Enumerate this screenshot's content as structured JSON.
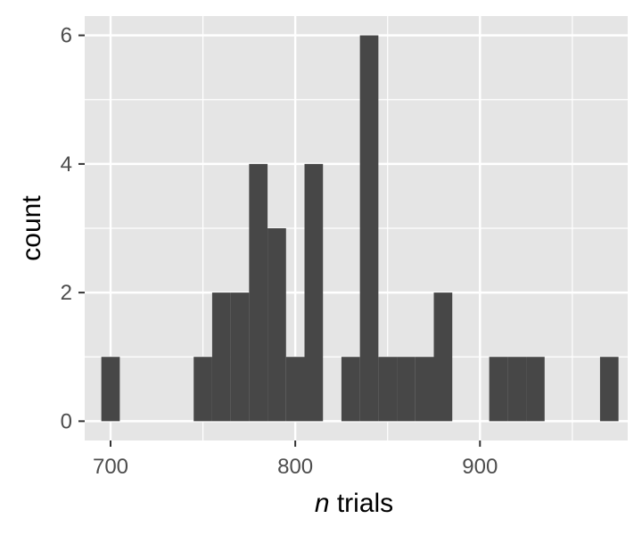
{
  "chart_data": {
    "type": "bar",
    "subtype": "histogram",
    "title": "",
    "xlabel_italic": "n",
    "xlabel_rest": " trials",
    "ylabel": "count",
    "bin_width": 10,
    "bins": [
      {
        "start": 695,
        "end": 705,
        "count": 1
      },
      {
        "start": 745,
        "end": 755,
        "count": 1
      },
      {
        "start": 755,
        "end": 765,
        "count": 2
      },
      {
        "start": 765,
        "end": 775,
        "count": 2
      },
      {
        "start": 775,
        "end": 785,
        "count": 4
      },
      {
        "start": 785,
        "end": 795,
        "count": 3
      },
      {
        "start": 795,
        "end": 805,
        "count": 1
      },
      {
        "start": 805,
        "end": 815,
        "count": 4
      },
      {
        "start": 825,
        "end": 835,
        "count": 1
      },
      {
        "start": 835,
        "end": 845,
        "count": 6
      },
      {
        "start": 845,
        "end": 855,
        "count": 1
      },
      {
        "start": 855,
        "end": 865,
        "count": 1
      },
      {
        "start": 865,
        "end": 875,
        "count": 1
      },
      {
        "start": 875,
        "end": 885,
        "count": 2
      },
      {
        "start": 905,
        "end": 915,
        "count": 1
      },
      {
        "start": 915,
        "end": 925,
        "count": 1
      },
      {
        "start": 925,
        "end": 935,
        "count": 1
      },
      {
        "start": 965,
        "end": 975,
        "count": 1
      }
    ],
    "xlim": [
      686,
      980
    ],
    "ylim": [
      -0.3,
      6.3
    ],
    "x_ticks": [
      {
        "value": 700,
        "label": "700"
      },
      {
        "value": 800,
        "label": "800"
      },
      {
        "value": 900,
        "label": "900"
      }
    ],
    "y_ticks": [
      {
        "value": 0,
        "label": "0"
      },
      {
        "value": 2,
        "label": "2"
      },
      {
        "value": 4,
        "label": "4"
      },
      {
        "value": 6,
        "label": "6"
      }
    ],
    "grid": true,
    "colors": {
      "panel": "#e5e5e5",
      "grid": "#ffffff",
      "bar": "#474747",
      "tick": "#333333"
    }
  }
}
